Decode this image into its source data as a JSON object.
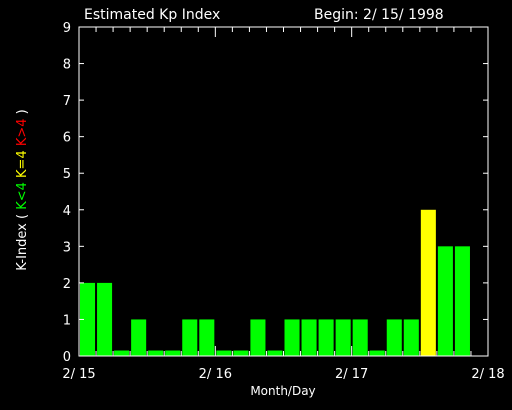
{
  "header": {
    "title": "Estimated Kp Index",
    "begin": "Begin: 2/ 15/ 1998"
  },
  "chart_data": {
    "type": "bar",
    "title": "Estimated Kp Index",
    "xlabel": "Month/Day",
    "ylabel_parts": [
      {
        "text": "K-Index (",
        "color": "#ffffff"
      },
      {
        "text": "K<4",
        "color": "#00ff00"
      },
      {
        "text": "K=4",
        "color": "#ffff00"
      },
      {
        "text": "K>4",
        "color": "#ff0000"
      },
      {
        "text": ")",
        "color": "#ffffff"
      }
    ],
    "ylim": [
      0,
      9
    ],
    "yticks": [
      "0",
      "1",
      "2",
      "3",
      "4",
      "5",
      "6",
      "7",
      "8",
      "9"
    ],
    "xticks": [
      "2/ 15",
      "2/ 16",
      "2/ 17",
      "2/ 18"
    ],
    "x_period_hours": 3,
    "values": [
      2,
      2,
      0.15,
      1,
      0.15,
      0.15,
      1,
      1,
      0.15,
      0.15,
      1,
      0.15,
      1,
      1,
      1,
      1,
      1,
      0.15,
      1,
      1,
      4,
      3,
      3,
      0
    ],
    "colors": {
      "low": "#00ff00",
      "equal": "#ffff00",
      "high": "#ff0000",
      "axes": "#ffffff",
      "background": "#000000"
    }
  }
}
